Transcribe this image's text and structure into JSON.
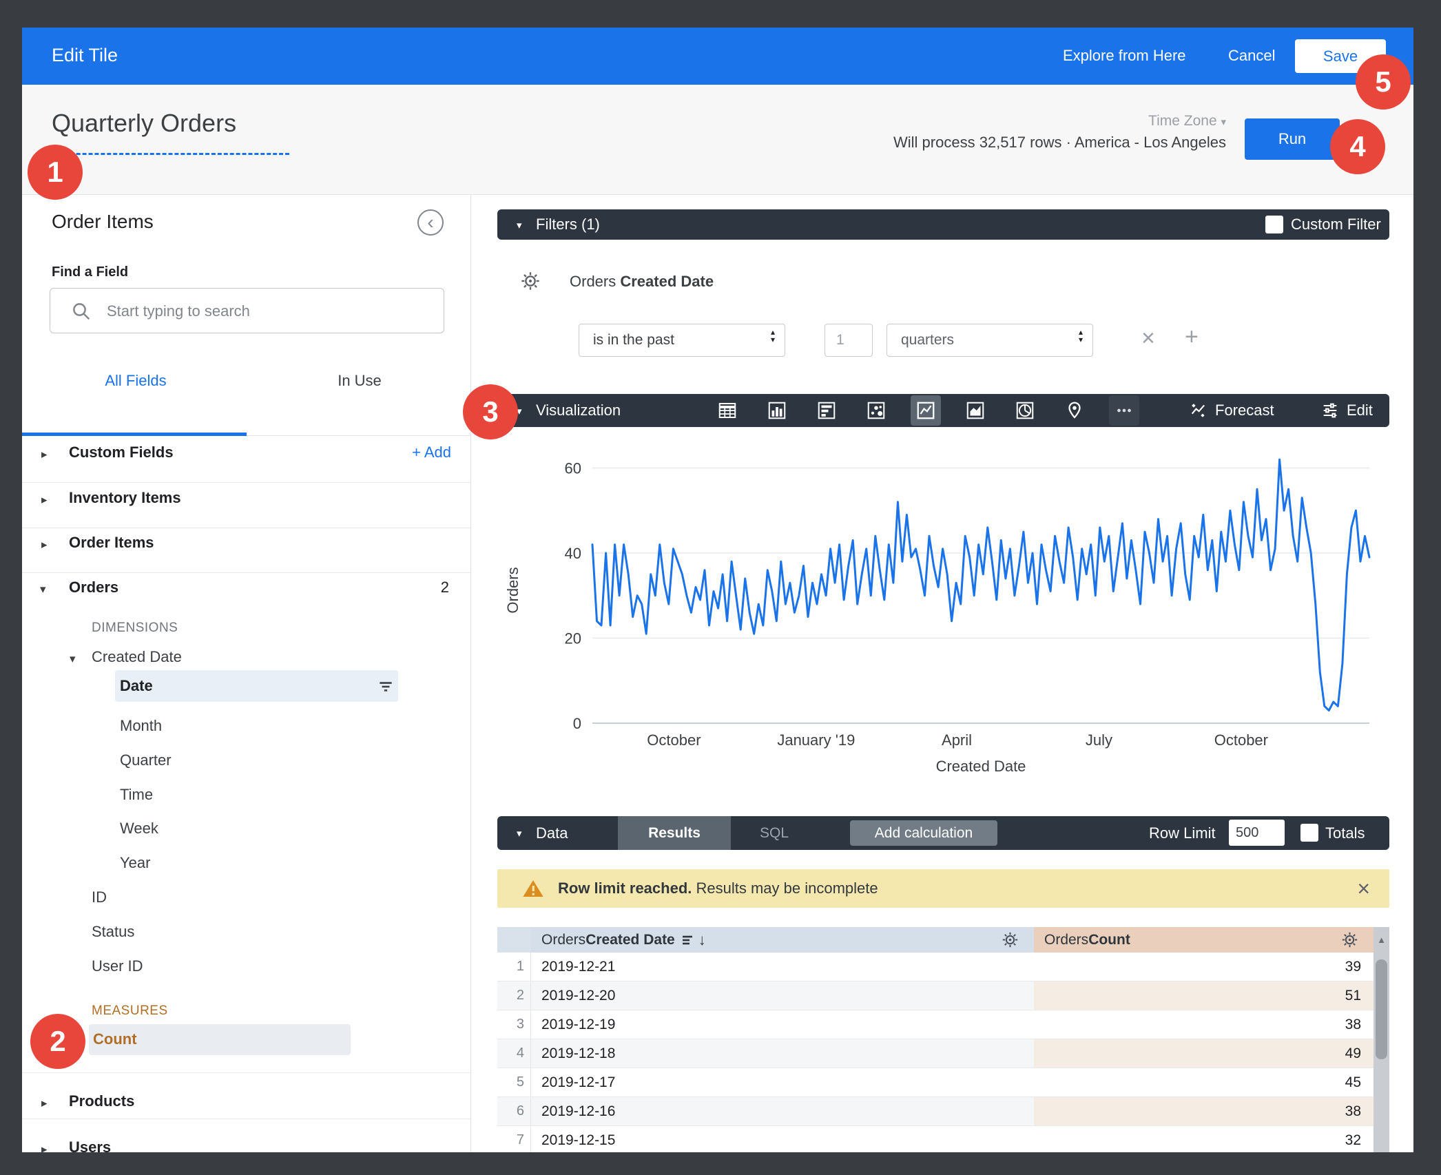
{
  "topbar": {
    "title": "Edit Tile",
    "explore": "Explore from Here",
    "cancel": "Cancel",
    "save": "Save"
  },
  "header": {
    "title": "Quarterly Orders",
    "time_zone": "Time Zone",
    "process_info": "Will process 32,517 rows · America - Los Angeles",
    "run": "Run"
  },
  "sidebar": {
    "panel_title": "Order Items",
    "find_field_label": "Find a Field",
    "search_placeholder": "Start typing to search",
    "tab_all": "All Fields",
    "tab_in_use": "In Use",
    "add_link": "+ Add",
    "custom_fields": "Custom Fields",
    "inventory_items": "Inventory Items",
    "order_items": "Order Items",
    "orders": "Orders",
    "orders_field_count": "2",
    "dimensions_label": "DIMENSIONS",
    "created_date": "Created Date",
    "date": "Date",
    "month": "Month",
    "quarter": "Quarter",
    "time": "Time",
    "week": "Week",
    "year": "Year",
    "id": "ID",
    "status": "Status",
    "user_id": "User ID",
    "measures_label": "MEASURES",
    "count": "Count",
    "products": "Products",
    "users": "Users"
  },
  "filters": {
    "bar_title": "Filters (1)",
    "custom_filter_label": "Custom Filter",
    "field_prefix": "Orders ",
    "field_bold": "Created Date",
    "op": "is in the past",
    "value": "1",
    "unit": "quarters"
  },
  "visualization": {
    "bar_title": "Visualization",
    "icon_names": [
      "table",
      "column-chart",
      "bar-chart",
      "scatter",
      "line-chart",
      "area-chart",
      "pie-chart",
      "map-pin",
      "more"
    ],
    "selected_icon": "line-chart",
    "forecast_label": "Forecast",
    "edit_label": "Edit"
  },
  "chart_data": {
    "type": "line",
    "title": "",
    "xlabel": "Created Date",
    "ylabel": "Orders",
    "legend": false,
    "grid": true,
    "y_ticks": [
      0,
      20,
      40,
      60
    ],
    "ylim": [
      0,
      62.5
    ],
    "x_ticks": [
      {
        "label": "October",
        "f": 0.105
      },
      {
        "label": "January '19",
        "f": 0.288
      },
      {
        "label": "April",
        "f": 0.469
      },
      {
        "label": "July",
        "f": 0.652
      },
      {
        "label": "October",
        "f": 0.835
      }
    ],
    "series": [
      {
        "name": "Orders",
        "color": "#1A73E8",
        "values": [
          42,
          24,
          23,
          40,
          23,
          42,
          30,
          42,
          35,
          25,
          30,
          28,
          21,
          35,
          30,
          42,
          33,
          28,
          41,
          38,
          35,
          30,
          26,
          32,
          29,
          36,
          23,
          31,
          27,
          35,
          24,
          38,
          30,
          22,
          34,
          26,
          21,
          28,
          23,
          36,
          31,
          24,
          38,
          28,
          33,
          26,
          30,
          37,
          25,
          33,
          28,
          35,
          30,
          41,
          33,
          42,
          29,
          37,
          43,
          28,
          35,
          41,
          30,
          44,
          36,
          29,
          42,
          33,
          52,
          38,
          49,
          39,
          41,
          36,
          30,
          44,
          37,
          32,
          41,
          35,
          24,
          33,
          28,
          44,
          39,
          30,
          42,
          35,
          46,
          38,
          29,
          43,
          34,
          41,
          30,
          37,
          45,
          33,
          40,
          28,
          42,
          36,
          31,
          44,
          38,
          33,
          46,
          39,
          29,
          41,
          35,
          42,
          30,
          46,
          38,
          44,
          31,
          39,
          47,
          34,
          43,
          36,
          28,
          45,
          40,
          33,
          48,
          38,
          44,
          30,
          41,
          47,
          35,
          29,
          44,
          39,
          49,
          36,
          43,
          31,
          45,
          38,
          50,
          42,
          36,
          52,
          44,
          39,
          55,
          43,
          48,
          36,
          41,
          62,
          50,
          55,
          44,
          38,
          53,
          46,
          40,
          28,
          12,
          4,
          3,
          5,
          4,
          14,
          35,
          46,
          50,
          38,
          44,
          39
        ]
      }
    ]
  },
  "data_section": {
    "bar_title": "Data",
    "results_tab": "Results",
    "sql_tab": "SQL",
    "add_calculation": "Add calculation",
    "row_limit_label": "Row Limit",
    "row_limit_value": "500",
    "totals_label": "Totals"
  },
  "warning": {
    "bold_text": "Row limit reached.",
    "rest_text": " Results may be incomplete"
  },
  "table": {
    "header_col1_prefix": "Orders ",
    "header_col1_bold": "Created Date",
    "header_col2_prefix": "Orders ",
    "header_col2_bold": "Count",
    "rows": [
      [
        "1",
        "2019-12-21",
        "39"
      ],
      [
        "2",
        "2019-12-20",
        "51"
      ],
      [
        "3",
        "2019-12-19",
        "38"
      ],
      [
        "4",
        "2019-12-18",
        "49"
      ],
      [
        "5",
        "2019-12-17",
        "45"
      ],
      [
        "6",
        "2019-12-16",
        "38"
      ],
      [
        "7",
        "2019-12-15",
        "32"
      ]
    ]
  },
  "badges": {
    "b1": "1",
    "b2": "2",
    "b3": "3",
    "b4": "4",
    "b5": "5"
  },
  "colors": {
    "accent": "#1A73E8",
    "dark_bar": "#2C3540",
    "badge_red": "#E8463A",
    "warning_bg": "#F4E8AE",
    "date_header_bg": "#D5DFE9",
    "count_header_bg": "#E9CFBC",
    "measure_orange": "#B06E26",
    "chart_line": "#1A73E8"
  }
}
